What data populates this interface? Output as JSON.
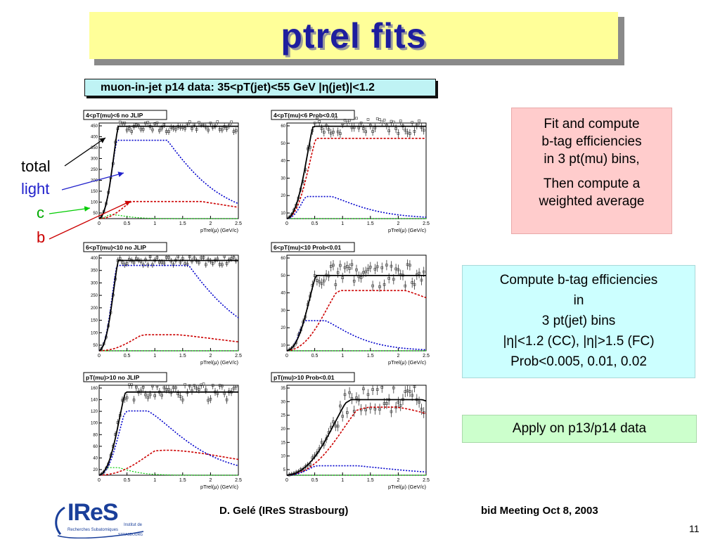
{
  "slide": {
    "title": "ptrel fits",
    "header": "muon-in-jet p14 data:  35<pT(jet)<55 GeV  |η(jet)|<1.2",
    "legend": {
      "total": "total",
      "light": "light",
      "c": "c",
      "b": "b"
    },
    "colors": {
      "title": "#1e1e9e",
      "total": "#000000",
      "light": "#0000cc",
      "c": "#00cc00",
      "b": "#cc0000"
    },
    "plots": [
      {
        "label": "4<pT(mu)<6 no JLIP",
        "xlabel": "pTrel(μ) (GeV/c)",
        "yticks": [
          "450",
          "400",
          "350",
          "300",
          "250",
          "200",
          "150",
          "100",
          "50"
        ],
        "xticks": [
          "0",
          "0.5",
          "1",
          "1.5",
          "2",
          "2.5"
        ]
      },
      {
        "label": "4<pT(mu)<6 Prob<0.01",
        "xlabel": "pTrel(μ) (GeV/c)",
        "yticks": [
          "60",
          "50",
          "40",
          "30",
          "20",
          "10"
        ],
        "xticks": [
          "0",
          "0.5",
          "1",
          "1.5",
          "2",
          "2.5"
        ]
      },
      {
        "label": "6<pT(mu)<10 no JLIP",
        "xlabel": "pTrel(μ) (GeV/c)",
        "yticks": [
          "400",
          "350",
          "300",
          "250",
          "200",
          "150",
          "100",
          "50"
        ],
        "xticks": [
          "0",
          "0.5",
          "1",
          "1.5",
          "2",
          "2.5"
        ]
      },
      {
        "label": "6<pT(mu)<10 Prob<0.01",
        "xlabel": "pTrel(μ) (GeV/c)",
        "yticks": [
          "60",
          "50",
          "40",
          "30",
          "20",
          "10"
        ],
        "xticks": [
          "0",
          "0.5",
          "1",
          "1.5",
          "2",
          "2.5"
        ]
      },
      {
        "label": "pT(mu)>10 no JLIP",
        "xlabel": "pTrel(μ) (GeV/c)",
        "yticks": [
          "160",
          "140",
          "120",
          "100",
          "80",
          "60",
          "40",
          "20"
        ],
        "xticks": [
          "0",
          "0.5",
          "1",
          "1.5",
          "2",
          "2.5"
        ]
      },
      {
        "label": "pT(mu)>10 Prob<0.01",
        "xlabel": "pTrel(μ) (GeV/c)",
        "yticks": [
          "35",
          "30",
          "25",
          "20",
          "15",
          "10",
          "5"
        ],
        "xticks": [
          "0",
          "0.5",
          "1",
          "1.5",
          "2",
          "2.5"
        ]
      }
    ],
    "boxes": {
      "pink": [
        "Fit and compute",
        "b-tag efficiencies",
        "in 3 pt(mu) bins,",
        "Then compute a",
        "weighted average"
      ],
      "cyan": [
        "Compute b-tag efficiencies",
        "in",
        "3 pt(jet) bins",
        "|η|<1.2 (CC),   |η|>1.5 (FC)",
        "Prob<0.005, 0.01, 0.02"
      ],
      "green": "Apply on  p13/p14 data"
    },
    "footer": {
      "author": "D. Gelé (IReS Strasbourg)",
      "meeting": "bid Meeting   Oct  8, 2003",
      "page": "11",
      "logo": "IReS",
      "logo_sub": [
        "Institut de",
        "Recherches Subatomiques",
        "STRASBOURG"
      ]
    }
  }
}
